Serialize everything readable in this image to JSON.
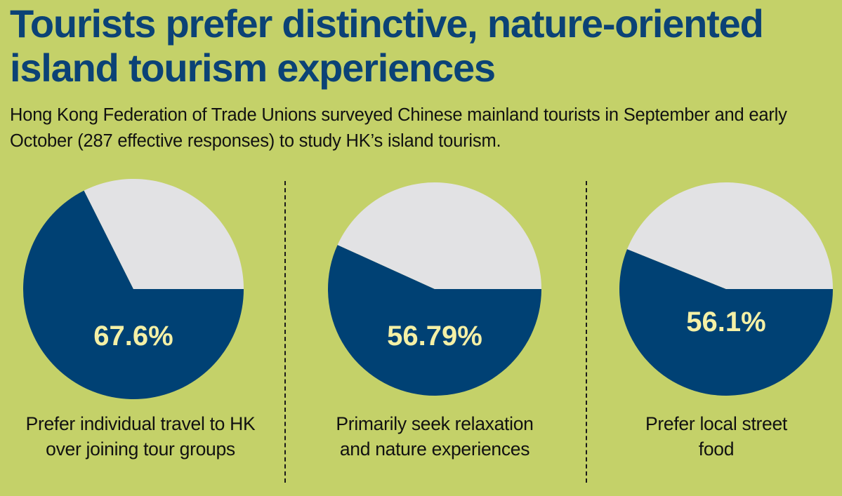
{
  "title": "Tourists prefer distinctive, nature-oriented island tourism experiences",
  "subtitle": "Hong Kong Federation of Trade Unions surveyed Chinese mainland tourists in September and early October (287 effective responses) to study HK’s island tourism.",
  "colors": {
    "background": "#c4d169",
    "title": "#0b4276",
    "primary_slice": "#004174",
    "remainder_slice": "#e2e2e4",
    "value_text": "#f4f0a6"
  },
  "chart_data": [
    {
      "type": "pie",
      "value_label": "67.6%",
      "caption": "Prefer individual travel to HK over joining tour groups",
      "slices": [
        {
          "value": 67.6,
          "color": "#004174"
        },
        {
          "value": 32.4,
          "color": "#e2e2e4"
        }
      ]
    },
    {
      "type": "pie",
      "value_label": "56.79%",
      "caption": "Primarily seek relaxation and nature experiences",
      "slices": [
        {
          "value": 56.79,
          "color": "#004174"
        },
        {
          "value": 43.21,
          "color": "#e2e2e4"
        }
      ]
    },
    {
      "type": "pie",
      "value_label": "56.1%",
      "caption": "Prefer local street food",
      "slices": [
        {
          "value": 56.1,
          "color": "#004174"
        },
        {
          "value": 43.9,
          "color": "#e2e2e4"
        }
      ]
    }
  ]
}
